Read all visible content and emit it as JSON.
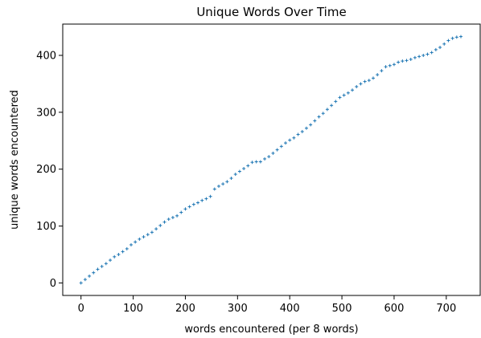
{
  "chart_data": {
    "type": "scatter",
    "title": "Unique Words Over Time",
    "xlabel": "words encountered (per 8 words)",
    "ylabel": "unique words encountered",
    "xlim": [
      -35,
      765
    ],
    "ylim": [
      -22,
      455
    ],
    "xticks": [
      0,
      100,
      200,
      300,
      400,
      500,
      600,
      700
    ],
    "yticks": [
      0,
      100,
      200,
      300,
      400
    ],
    "grid": false,
    "marker_color": "#1f77b4",
    "series": [
      {
        "x": [
          0,
          8,
          16,
          24,
          32,
          40,
          48,
          56,
          64,
          72,
          80,
          88,
          96,
          104,
          112,
          120,
          128,
          136,
          144,
          152,
          160,
          168,
          176,
          184,
          192,
          200,
          208,
          216,
          224,
          232,
          240,
          248,
          256,
          264,
          272,
          280,
          288,
          296,
          304,
          312,
          320,
          328,
          336,
          344,
          352,
          360,
          368,
          376,
          384,
          392,
          400,
          408,
          416,
          424,
          432,
          440,
          448,
          456,
          464,
          472,
          480,
          488,
          496,
          504,
          512,
          520,
          528,
          536,
          544,
          552,
          560,
          568,
          576,
          584,
          592,
          600,
          608,
          616,
          624,
          632,
          640,
          648,
          656,
          664,
          672,
          680,
          688,
          696,
          704,
          712,
          720,
          728
        ],
        "y": [
          0,
          6,
          12,
          18,
          24,
          29,
          34,
          40,
          46,
          50,
          55,
          60,
          67,
          72,
          77,
          81,
          85,
          89,
          95,
          101,
          107,
          112,
          115,
          118,
          124,
          130,
          134,
          138,
          141,
          145,
          148,
          152,
          165,
          170,
          174,
          178,
          184,
          191,
          196,
          201,
          206,
          212,
          213,
          213,
          218,
          222,
          228,
          234,
          240,
          246,
          251,
          255,
          261,
          266,
          272,
          278,
          285,
          292,
          298,
          305,
          312,
          319,
          326,
          330,
          334,
          339,
          345,
          350,
          354,
          356,
          360,
          366,
          373,
          380,
          382,
          384,
          388,
          390,
          391,
          393,
          396,
          398,
          400,
          402,
          405,
          410,
          414,
          420,
          426,
          430,
          432,
          433
        ]
      }
    ]
  }
}
